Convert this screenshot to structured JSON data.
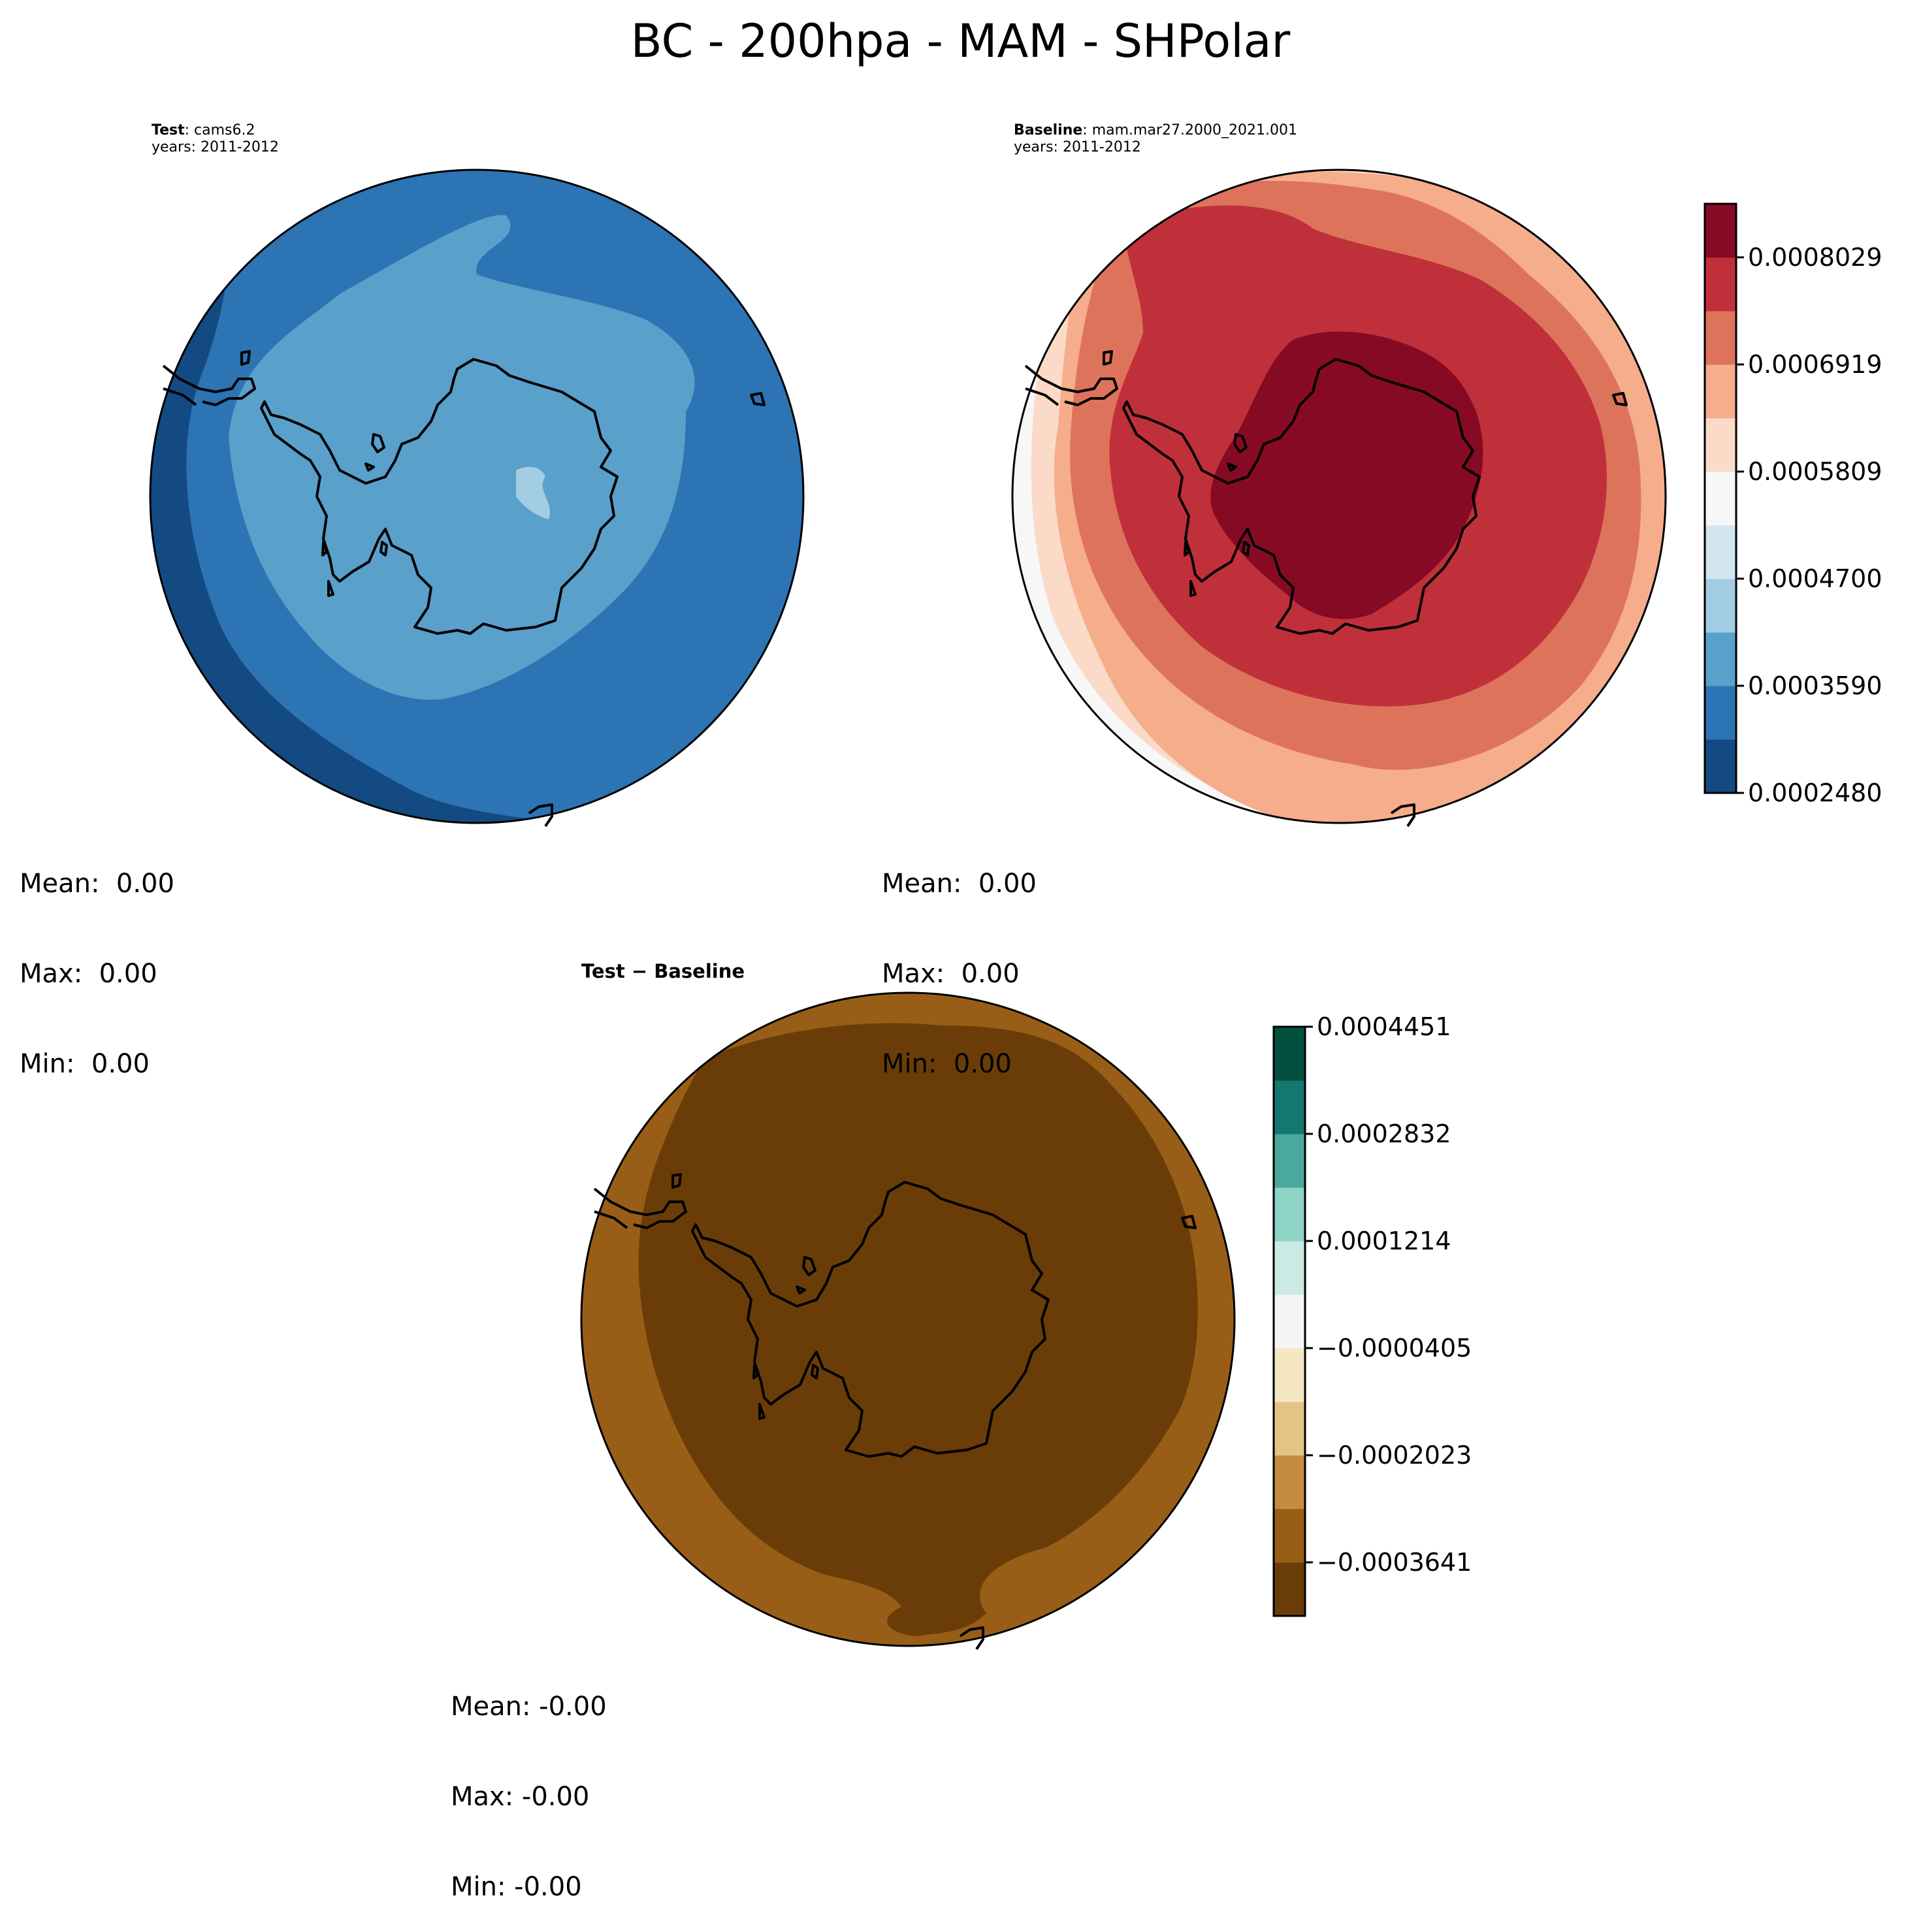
{
  "figure": {
    "title": "BC - 200hpa - MAM - SHPolar"
  },
  "panels": {
    "test": {
      "label_bold": "Test",
      "label_rest": ": cams6.2",
      "years": "years: 2011-2012",
      "stats": {
        "mean": "Mean:  0.00",
        "max": "Max:  0.00",
        "min": "Min:  0.00"
      }
    },
    "baseline": {
      "label_bold": "Baseline",
      "label_rest": ": mam.mar27.2000_2021.001",
      "years": "years: 2011-2012",
      "stats": {
        "mean": "Mean:  0.00",
        "max": "Max:  0.00",
        "min": "Min:  0.00"
      }
    },
    "diff": {
      "title": "Test − Baseline",
      "stats": {
        "mean": "Mean: -0.00",
        "max": "Max: -0.00",
        "min": "Min: -0.00"
      }
    }
  },
  "chart_data": [
    {
      "type": "heatmap",
      "name": "test-map",
      "projection": "south polar stereographic",
      "colormap": "RdBu_r",
      "levels": [
        0.000248,
        0.000359,
        0.00047,
        0.0005809,
        0.0006919,
        0.0008029
      ],
      "colorbar_ticks": [
        "0.0002480",
        "0.0003590",
        "0.0004700",
        "0.0005809",
        "0.0006919",
        "0.0008029"
      ],
      "colors": [
        "#134a81",
        "#2c74b4",
        "#59a0cb",
        "#a2cde3",
        "#d3e5f0",
        "#f7f7f7",
        "#fbdbc8",
        "#f5ad8c",
        "#de735c",
        "#c0303a",
        "#870a24"
      ]
    },
    {
      "type": "heatmap",
      "name": "baseline-map",
      "projection": "south polar stereographic",
      "colormap": "RdBu_r",
      "levels": [
        0.000248,
        0.000359,
        0.00047,
        0.0005809,
        0.0006919,
        0.0008029
      ],
      "colorbar_ticks": [
        "0.0002480",
        "0.0003590",
        "0.0004700",
        "0.0005809",
        "0.0006919",
        "0.0008029"
      ]
    },
    {
      "type": "heatmap",
      "name": "diff-map",
      "projection": "south polar stereographic",
      "colormap": "BrBG",
      "levels": [
        -0.0003641,
        -0.0002023,
        -4.05e-05,
        0.0001214,
        0.0002832,
        0.0004451
      ],
      "colorbar_ticks": [
        "−0.0003641",
        "−0.0002023",
        "−0.0000405",
        "0.0001214",
        "0.0002832",
        "0.0004451"
      ],
      "colors": [
        "#6a3d08",
        "#985e17",
        "#c58b3e",
        "#e2c585",
        "#f6e7c3",
        "#f5f5f5",
        "#cceae4",
        "#8fd2c6",
        "#4ba89c",
        "#147770",
        "#02513e"
      ]
    }
  ]
}
